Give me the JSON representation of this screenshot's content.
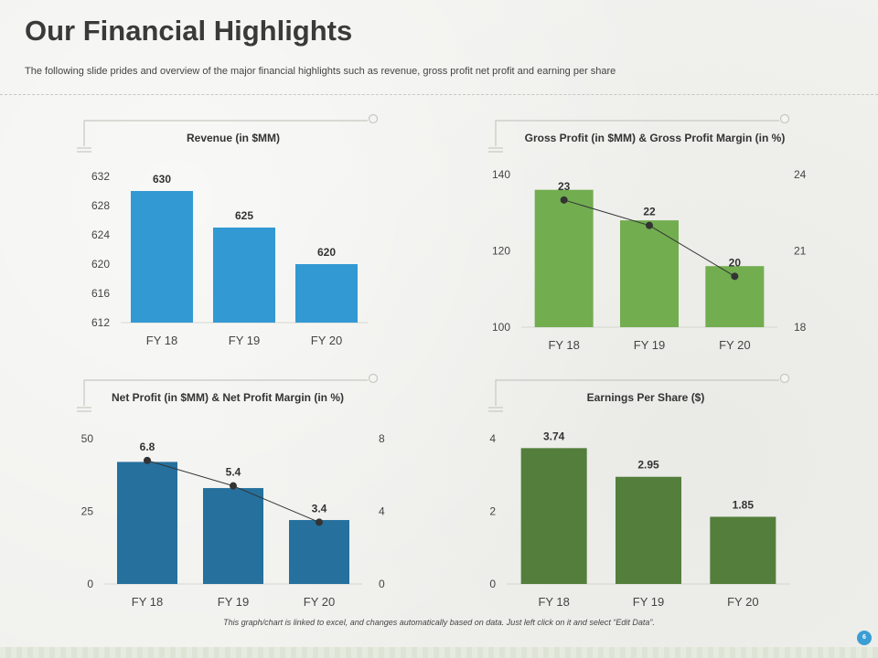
{
  "header": {
    "title": "Our Financial Highlights",
    "subtitle": "The following slide prides and overview of the major financial highlights such as revenue, gross profit net profit and earning per share"
  },
  "footer": {
    "note": "This graph/chart is linked to excel, and changes automatically based on data. Just left click on it and select “Edit Data”.",
    "page_number": "6"
  },
  "colors": {
    "revenue": "#3399d3",
    "gross": "#72ad50",
    "net": "#25709d",
    "eps": "#537e3c",
    "line": "#333333"
  },
  "chart_data": [
    {
      "id": "revenue",
      "type": "bar",
      "title": "Revenue (in $MM)",
      "categories": [
        "FY 18",
        "FY 19",
        "FY 20"
      ],
      "values": [
        630,
        625,
        620
      ],
      "value_labels": [
        "630",
        "625",
        "620"
      ],
      "ylim": [
        612,
        632
      ],
      "yticks": [
        "632",
        "628",
        "624",
        "620",
        "616",
        "612"
      ],
      "xlabel": "",
      "ylabel": ""
    },
    {
      "id": "gross",
      "type": "bar",
      "title": "Gross  Profit (in $MM) & Gross  Profit Margin (in %)",
      "categories": [
        "FY 18",
        "FY 19",
        "FY 20"
      ],
      "series": [
        {
          "name": "Gross Profit (in $MM)",
          "type": "bar",
          "values": [
            136,
            128,
            116
          ]
        },
        {
          "name": "Gross Profit Margin (in %)",
          "type": "line",
          "axis": "right",
          "values": [
            23,
            22,
            20
          ],
          "labels": [
            "23",
            "22",
            "20"
          ]
        }
      ],
      "ylim": [
        100,
        140
      ],
      "yticks": [
        "140",
        "120",
        "100"
      ],
      "y2lim": [
        18,
        24
      ],
      "y2ticks": [
        "24",
        "21",
        "18"
      ]
    },
    {
      "id": "net",
      "type": "bar",
      "title": "Net Profit (in $MM) & Net Profit Margin (in %)",
      "categories": [
        "FY 18",
        "FY 19",
        "FY 20"
      ],
      "series": [
        {
          "name": "Net Profit (in $MM)",
          "type": "bar",
          "values": [
            42,
            33,
            22
          ]
        },
        {
          "name": "Net Profit Margin (in %)",
          "type": "line",
          "axis": "right",
          "values": [
            6.8,
            5.4,
            3.4
          ],
          "labels": [
            "6.8",
            "5.4",
            "3.4"
          ]
        }
      ],
      "ylim": [
        0,
        50
      ],
      "yticks": [
        "50",
        "25",
        "0"
      ],
      "y2lim": [
        0,
        8
      ],
      "y2ticks": [
        "8",
        "4",
        "0"
      ]
    },
    {
      "id": "eps",
      "type": "bar",
      "title": "Earnings Per Share ($)",
      "categories": [
        "FY 18",
        "FY 19",
        "FY 20"
      ],
      "values": [
        3.74,
        2.95,
        1.85
      ],
      "value_labels": [
        "3.74",
        "2.95",
        "1.85"
      ],
      "ylim": [
        0,
        4
      ],
      "yticks": [
        "4",
        "2",
        "0"
      ]
    }
  ]
}
